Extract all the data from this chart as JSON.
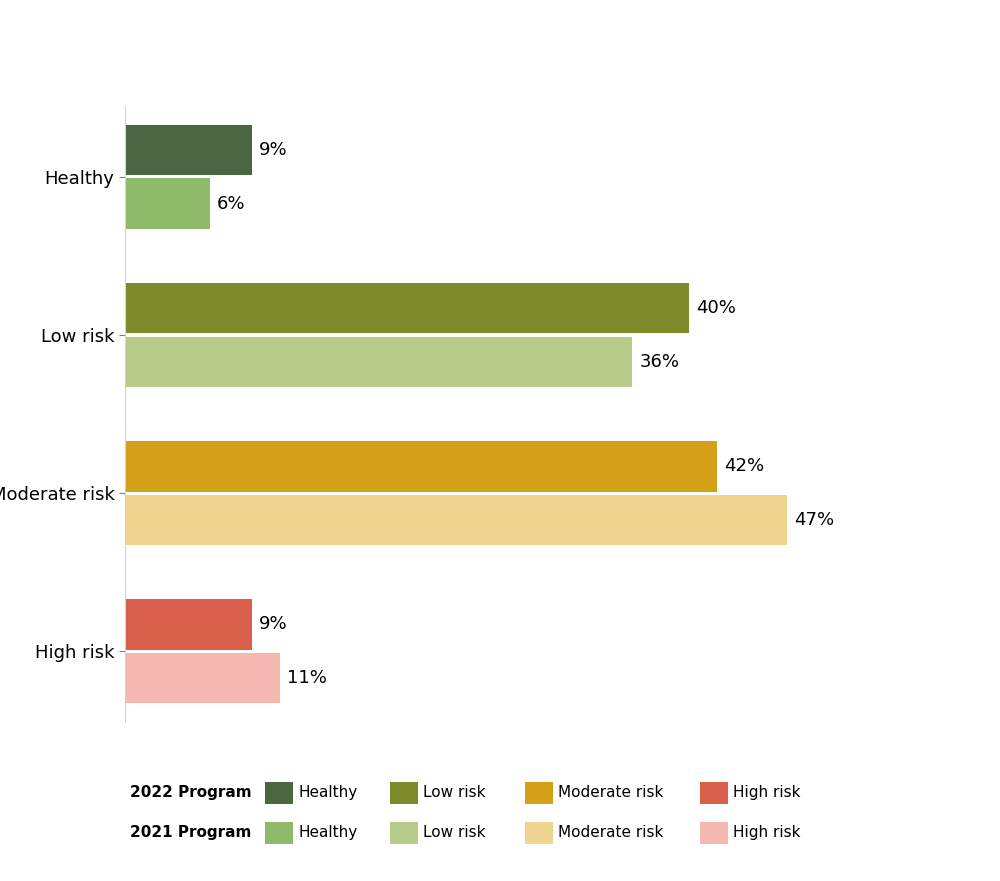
{
  "categories": [
    "Healthy",
    "Low risk",
    "Moderate risk",
    "High risk"
  ],
  "program_2022": [
    9,
    40,
    42,
    9
  ],
  "program_2021": [
    6,
    36,
    47,
    11
  ],
  "colors_2022": [
    "#4a6741",
    "#7d8b2a",
    "#d4a017",
    "#d95f4b"
  ],
  "colors_2021": [
    "#8fba6a",
    "#b8cc8a",
    "#f0d490",
    "#f5b8b0"
  ],
  "figsize": [
    10,
    8.81
  ],
  "dpi": 100,
  "background_color": "#ffffff",
  "tick_fontsize": 13,
  "annotation_fontsize": 13,
  "legend_fontsize": 11,
  "xlim": [
    0,
    55
  ],
  "ytick_labels": [
    "Healthy",
    "Low risk",
    "Moderate risk",
    "High risk"
  ]
}
